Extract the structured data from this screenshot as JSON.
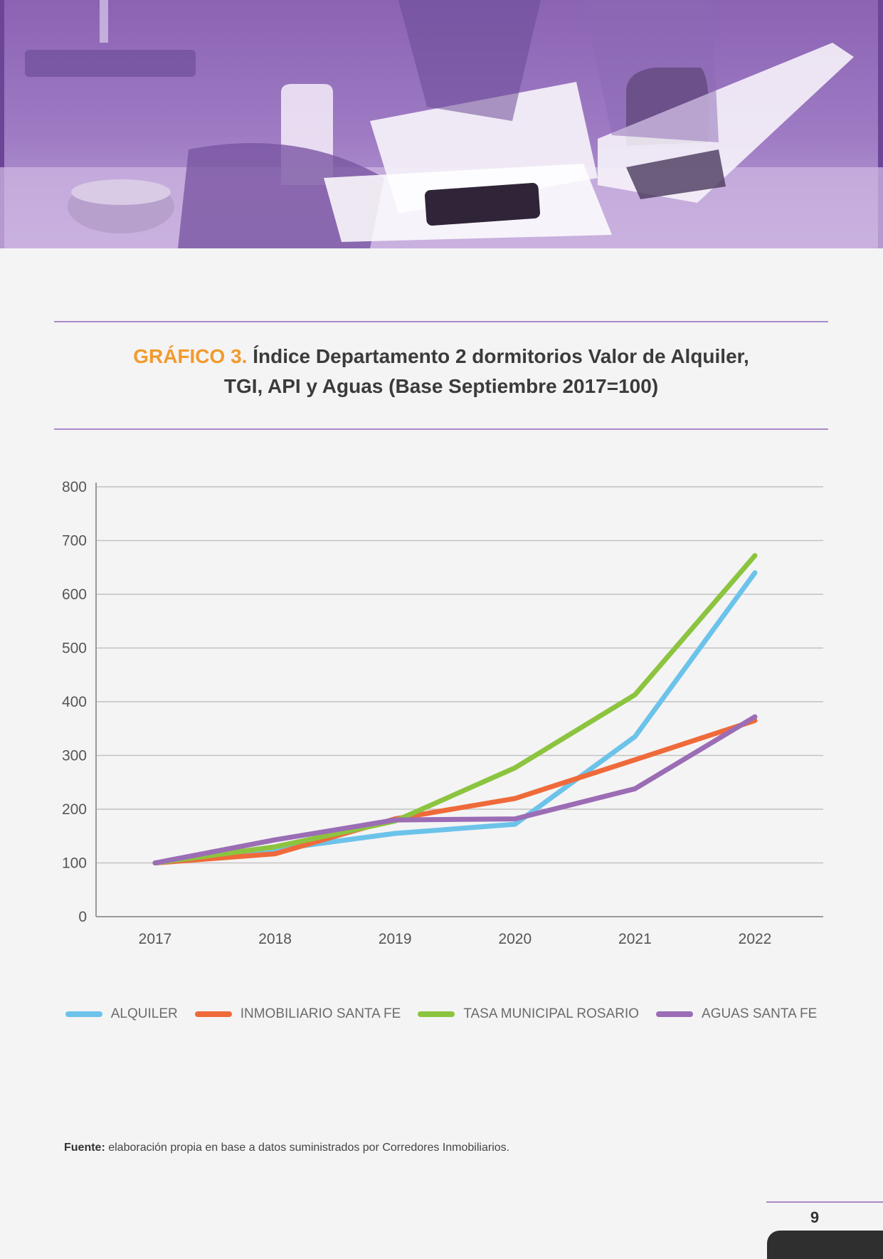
{
  "title": {
    "prefix": "GRÁFICO 3.",
    "line1": "Índice Departamento 2 dormitorios Valor de Alquiler,",
    "line2": "TGI, API y Aguas (Base Septiembre 2017=100)"
  },
  "chart_data": {
    "type": "line",
    "x": [
      "2017",
      "2018",
      "2019",
      "2020",
      "2021",
      "2022"
    ],
    "ylim": [
      0,
      800
    ],
    "yticks": [
      0,
      100,
      200,
      300,
      400,
      500,
      600,
      700,
      800
    ],
    "grid": true,
    "legend_position": "bottom",
    "series": [
      {
        "name": "ALQUILER",
        "color": "#6cc3ea",
        "values": [
          100,
          125,
          155,
          172,
          335,
          640
        ]
      },
      {
        "name": "INMOBILIARIO SANTA FE",
        "color": "#ef6a3a",
        "values": [
          100,
          117,
          182,
          220,
          292,
          365
        ]
      },
      {
        "name": "TASA MUNICIPAL ROSARIO",
        "color": "#8cc43f",
        "values": [
          100,
          130,
          178,
          277,
          413,
          672
        ]
      },
      {
        "name": "AGUAS SANTA FE",
        "color": "#9b6db5",
        "values": [
          100,
          143,
          180,
          182,
          238,
          372
        ]
      }
    ]
  },
  "source": {
    "label": "Fuente:",
    "text": " elaboración propia en base a datos suministrados por Corredores Inmobiliarios."
  },
  "page_number": "9"
}
